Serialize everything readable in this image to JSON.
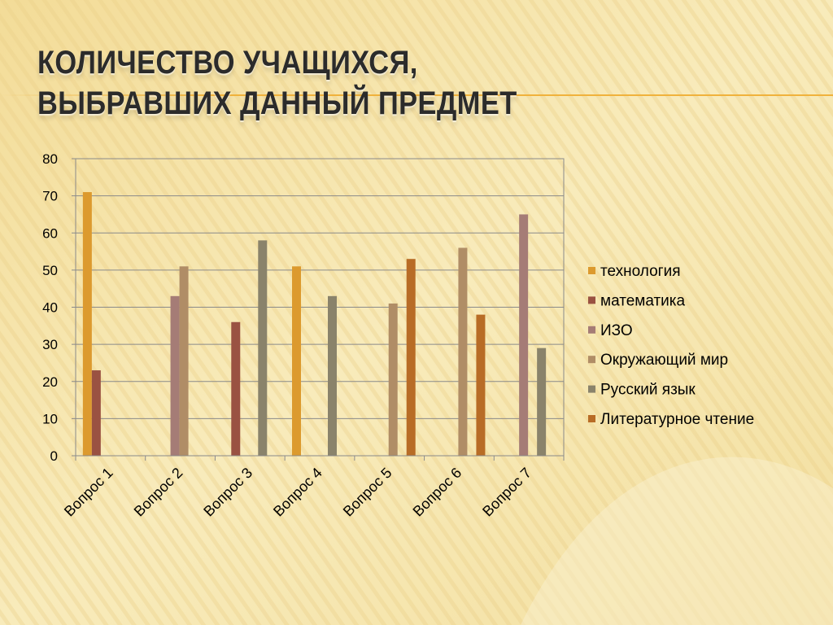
{
  "slide": {
    "title_line1": "Количество учащихся,",
    "title_line2": " выбравших данный предмет"
  },
  "colors": {
    "background": "#f7e8b4",
    "title_rule": "#f0b23c"
  },
  "chart_data": {
    "type": "bar",
    "title": "",
    "xlabel": "",
    "ylabel": "",
    "ylim": [
      0,
      80
    ],
    "yticks": [
      0,
      10,
      20,
      30,
      40,
      50,
      60,
      70,
      80
    ],
    "grid": true,
    "legend_position": "right",
    "categories": [
      "Вопрос 1",
      "Вопрос 2",
      "Вопрос 3",
      "Вопрос 4",
      "Вопрос 5",
      "Вопрос 6",
      "Вопрос 7"
    ],
    "series": [
      {
        "name": "технология",
        "color": "#dc9a2e",
        "values": [
          71,
          null,
          null,
          51,
          null,
          null,
          null
        ]
      },
      {
        "name": "математика",
        "color": "#9a5242",
        "values": [
          23,
          null,
          36,
          null,
          null,
          null,
          null
        ]
      },
      {
        "name": "ИЗО",
        "color": "#a57c76",
        "values": [
          null,
          43,
          null,
          null,
          null,
          null,
          65
        ]
      },
      {
        "name": "Окружающий мир",
        "color": "#b08d66",
        "values": [
          null,
          51,
          null,
          null,
          41,
          56,
          null
        ]
      },
      {
        "name": "Русский язык",
        "color": "#8a836b",
        "values": [
          null,
          null,
          58,
          43,
          null,
          null,
          29
        ]
      },
      {
        "name": "Литературное чтение",
        "color": "#b86c26",
        "values": [
          null,
          null,
          null,
          null,
          53,
          38,
          null
        ]
      }
    ]
  }
}
